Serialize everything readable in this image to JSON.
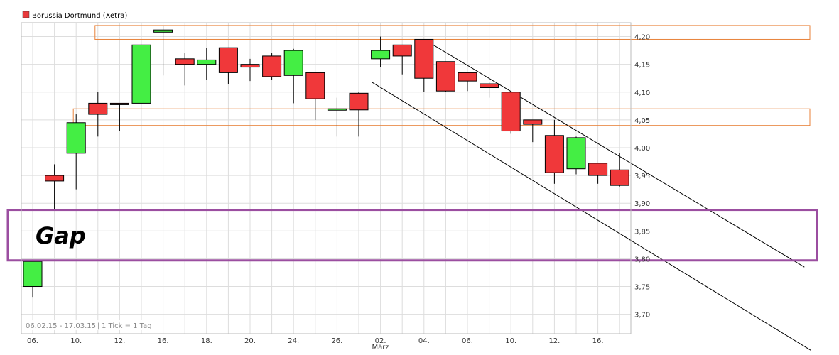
{
  "chart_data": {
    "type": "candlestick",
    "legend": {
      "label": "Borussia Dortmund (Xetra)",
      "color": "#e8393b"
    },
    "footer": {
      "range": "06.02.15 - 17.03.15",
      "interval": "1 Tick = 1 Tag"
    },
    "colors": {
      "up": "#44ee44",
      "down": "#f0383a",
      "grid": "#dddddd",
      "resistance": "#e8823a",
      "gap_box": "#9b4ea0",
      "trend": "#000000"
    },
    "ylim": [
      3.665,
      4.225
    ],
    "y_ticks": [
      "3,70",
      "3,75",
      "3,80",
      "3,85",
      "3,90",
      "3,95",
      "4,00",
      "4,05",
      "4,10",
      "4,15",
      "4,20"
    ],
    "x_ticks": [
      {
        "label": "06.",
        "index": 0
      },
      {
        "label": "10.",
        "index": 2
      },
      {
        "label": "12.",
        "index": 4
      },
      {
        "label": "16.",
        "index": 6
      },
      {
        "label": "18.",
        "index": 8
      },
      {
        "label": "20.",
        "index": 10
      },
      {
        "label": "24.",
        "index": 12
      },
      {
        "label": "26.",
        "index": 14
      },
      {
        "label": "02.",
        "index": 16
      },
      {
        "label": "04.",
        "index": 18
      },
      {
        "label": "06.",
        "index": 20
      },
      {
        "label": "10.",
        "index": 22
      },
      {
        "label": "12.",
        "index": 24
      },
      {
        "label": "16.",
        "index": 26
      }
    ],
    "x_month_label": {
      "label": "März",
      "index": 16
    },
    "candles": [
      {
        "o": 3.75,
        "h": 3.795,
        "l": 3.73,
        "c": 3.795
      },
      {
        "o": 3.95,
        "h": 3.97,
        "l": 3.89,
        "c": 3.94
      },
      {
        "o": 3.99,
        "h": 4.06,
        "l": 3.925,
        "c": 4.045
      },
      {
        "o": 4.08,
        "h": 4.1,
        "l": 4.02,
        "c": 4.06
      },
      {
        "o": 4.08,
        "h": 4.08,
        "l": 4.03,
        "c": 4.078
      },
      {
        "o": 4.08,
        "h": 4.185,
        "l": 4.08,
        "c": 4.185
      },
      {
        "o": 4.208,
        "h": 4.22,
        "l": 4.13,
        "c": 4.212
      },
      {
        "o": 4.16,
        "h": 4.17,
        "l": 4.112,
        "c": 4.15
      },
      {
        "o": 4.15,
        "h": 4.18,
        "l": 4.122,
        "c": 4.158
      },
      {
        "o": 4.18,
        "h": 4.18,
        "l": 4.115,
        "c": 4.135
      },
      {
        "o": 4.15,
        "h": 4.16,
        "l": 4.12,
        "c": 4.145
      },
      {
        "o": 4.165,
        "h": 4.17,
        "l": 4.122,
        "c": 4.128
      },
      {
        "o": 4.13,
        "h": 4.178,
        "l": 4.08,
        "c": 4.175
      },
      {
        "o": 4.135,
        "h": 4.135,
        "l": 4.05,
        "c": 4.088
      },
      {
        "o": 4.07,
        "h": 4.09,
        "l": 4.02,
        "c": 4.07
      },
      {
        "o": 4.098,
        "h": 4.1,
        "l": 4.02,
        "c": 4.068
      },
      {
        "o": 4.16,
        "h": 4.2,
        "l": 4.145,
        "c": 4.175
      },
      {
        "o": 4.185,
        "h": 4.185,
        "l": 4.132,
        "c": 4.165
      },
      {
        "o": 4.195,
        "h": 4.195,
        "l": 4.1,
        "c": 4.125
      },
      {
        "o": 4.155,
        "h": 4.155,
        "l": 4.1,
        "c": 4.102
      },
      {
        "o": 4.135,
        "h": 4.135,
        "l": 4.102,
        "c": 4.12
      },
      {
        "o": 4.115,
        "h": 4.118,
        "l": 4.09,
        "c": 4.108
      },
      {
        "o": 4.1,
        "h": 4.1,
        "l": 4.025,
        "c": 4.03
      },
      {
        "o": 4.05,
        "h": 4.05,
        "l": 4.01,
        "c": 4.042
      },
      {
        "o": 4.022,
        "h": 4.05,
        "l": 3.935,
        "c": 3.955
      },
      {
        "o": 3.962,
        "h": 4.02,
        "l": 3.952,
        "c": 4.018
      },
      {
        "o": 3.972,
        "h": 3.972,
        "l": 3.935,
        "c": 3.95
      },
      {
        "o": 3.96,
        "h": 3.99,
        "l": 3.93,
        "c": 3.932
      }
    ],
    "resistance_zones": [
      {
        "from": 4.195,
        "to": 4.22,
        "start_index": 3
      },
      {
        "from": 4.04,
        "to": 4.07,
        "start_index": 2
      }
    ],
    "gap": {
      "label": "Gap",
      "from": 3.797,
      "to": 3.888
    },
    "trend_lines": [
      {
        "from": {
          "index": 18,
          "value": 4.195
        },
        "to": {
          "index": 35.5,
          "value": 3.785
        }
      },
      {
        "from": {
          "index": 15.6,
          "value": 4.118
        },
        "to": {
          "index": 35.8,
          "value": 3.635
        }
      }
    ]
  }
}
